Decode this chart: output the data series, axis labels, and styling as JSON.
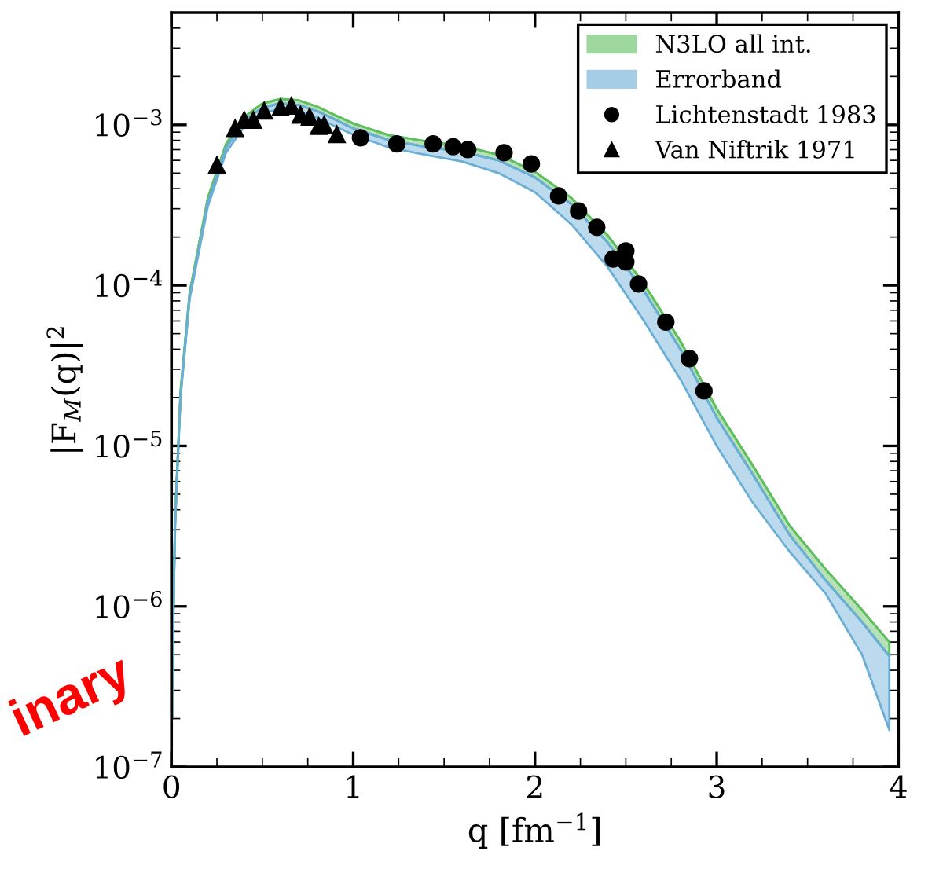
{
  "chart_data": {
    "type": "line",
    "xlabel": "q [fm$^{−1}$]",
    "ylabel": "|F$_{M}$(q)|$^{2}$",
    "xlim": [
      0,
      4
    ],
    "xticks": [
      0,
      1,
      2,
      3,
      4
    ],
    "ylim": [
      1e-07,
      0.005
    ],
    "log": "y",
    "yticks": [
      {
        "value": 1e-07,
        "label": "10$^{−7}$"
      },
      {
        "value": 1e-06,
        "label": "10$^{−6}$"
      },
      {
        "value": 1e-05,
        "label": "10$^{−5}$"
      },
      {
        "value": 0.0001,
        "label": "10$^{−4}$"
      },
      {
        "value": 0.001,
        "label": "10$^{−3}$"
      }
    ],
    "grid": false,
    "legend": "top right",
    "annotations": [
      {
        "text": "inary"
      }
    ],
    "series": [
      {
        "name": "N3LO all int.",
        "color": "#5fbf5f",
        "x": [
          0.005,
          0.01,
          0.02,
          0.05,
          0.1,
          0.2,
          0.3,
          0.4,
          0.5,
          0.6,
          0.7,
          0.8,
          0.9,
          1.0,
          1.2,
          1.4,
          1.6,
          1.8,
          2.0,
          2.2,
          2.4,
          2.6,
          2.8,
          3.0,
          3.2,
          3.4,
          3.6,
          3.8,
          3.95
        ],
        "values": [
          2.2e-07,
          9e-07,
          3.6e-06,
          2.2e-05,
          9e-05,
          0.00035,
          0.00076,
          0.00112,
          0.00136,
          0.00145,
          0.00142,
          0.0013,
          0.00115,
          0.00102,
          0.00086,
          0.00079,
          0.00074,
          0.00065,
          0.00051,
          0.00035,
          0.000205,
          0.000102,
          4.5e-05,
          1.7e-05,
          7.5e-06,
          3.2e-06,
          1.7e-06,
          9.5e-07,
          6e-07
        ],
        "upper": [
          2.2e-07,
          9e-07,
          3.6e-06,
          2.2e-05,
          9e-05,
          0.00035,
          0.00076,
          0.00112,
          0.00136,
          0.00145,
          0.00142,
          0.0013,
          0.00115,
          0.00102,
          0.00086,
          0.00079,
          0.00074,
          0.00065,
          0.00051,
          0.00035,
          0.000205,
          0.000102,
          4.5e-05,
          1.7e-05,
          7.5e-06,
          3.2e-06,
          1.7e-06,
          9.5e-07,
          6e-07
        ],
        "lower": [
          2.1e-07,
          8.6e-07,
          3.4e-06,
          2.1e-05,
          8.6e-05,
          0.00033,
          0.00072,
          0.00106,
          0.00128,
          0.00136,
          0.00133,
          0.00122,
          0.00108,
          0.00095,
          0.0008,
          0.00073,
          0.00068,
          0.0006,
          0.00047,
          0.00032,
          0.000185,
          9.2e-05,
          4e-05,
          1.5e-05,
          6.6e-06,
          2.8e-06,
          1.45e-06,
          8e-07,
          4.9e-07
        ]
      },
      {
        "name": "Errorband",
        "color": "#6aaed6",
        "x": [
          0.005,
          0.01,
          0.02,
          0.05,
          0.1,
          0.2,
          0.3,
          0.4,
          0.5,
          0.6,
          0.7,
          0.8,
          0.9,
          1.0,
          1.2,
          1.4,
          1.6,
          1.8,
          2.0,
          2.2,
          2.4,
          2.6,
          2.8,
          3.0,
          3.2,
          3.4,
          3.6,
          3.8,
          3.95
        ],
        "values": [
          2.1e-07,
          8.6e-07,
          3.4e-06,
          2.1e-05,
          8.6e-05,
          0.00033,
          0.00072,
          0.00106,
          0.00128,
          0.00136,
          0.00133,
          0.00122,
          0.00108,
          0.00095,
          0.0008,
          0.00073,
          0.00068,
          0.0006,
          0.00047,
          0.00032,
          0.000185,
          9.2e-05,
          4e-05,
          1.5e-05,
          6.6e-06,
          2.8e-06,
          1.45e-06,
          8e-07,
          4.9e-07
        ],
        "upper": [
          2.1e-07,
          8.6e-07,
          3.4e-06,
          2.1e-05,
          8.6e-05,
          0.00033,
          0.00072,
          0.00106,
          0.00128,
          0.00136,
          0.00133,
          0.00122,
          0.00108,
          0.00095,
          0.0008,
          0.00073,
          0.00068,
          0.0006,
          0.00047,
          0.00032,
          0.000185,
          9.2e-05,
          4e-05,
          1.5e-05,
          6.6e-06,
          2.8e-06,
          1.45e-06,
          8e-07,
          4.9e-07
        ],
        "lower": [
          2e-07,
          8.2e-07,
          3.2e-06,
          2e-05,
          8.2e-05,
          0.00031,
          0.00067,
          0.00098,
          0.00119,
          0.00125,
          0.00122,
          0.00111,
          0.00098,
          0.00087,
          0.00072,
          0.00065,
          0.00059,
          0.0005,
          0.00038,
          0.00024,
          0.00013,
          6e-05,
          2.6e-05,
          1e-05,
          4.4e-06,
          2.2e-06,
          1.2e-06,
          5e-07,
          1.7e-07
        ]
      },
      {
        "name": "Lichtenstadt 1983",
        "type": "scatter",
        "marker": "circle",
        "color": "#000000",
        "x": [
          1.04,
          1.24,
          1.44,
          1.55,
          1.63,
          1.83,
          1.98,
          2.13,
          2.24,
          2.34,
          2.43,
          2.5,
          2.5,
          2.57,
          2.72,
          2.85,
          2.93
        ],
        "values": [
          0.00083,
          0.00076,
          0.00076,
          0.00073,
          0.0007,
          0.00067,
          0.00057,
          0.00036,
          0.00029,
          0.00023,
          0.000146,
          0.000164,
          0.00014,
          0.000102,
          5.9e-05,
          3.5e-05,
          2.2e-05
        ]
      },
      {
        "name": "Van Niftrik 1971",
        "type": "scatter",
        "marker": "triangle",
        "color": "#000000",
        "x": [
          0.25,
          0.35,
          0.4,
          0.45,
          0.51,
          0.6,
          0.66,
          0.71,
          0.76,
          0.81,
          0.84,
          0.91
        ],
        "values": [
          0.00056,
          0.00095,
          0.00107,
          0.00107,
          0.00122,
          0.00128,
          0.00131,
          0.00115,
          0.00112,
          0.00098,
          0.001,
          0.00087
        ]
      }
    ]
  }
}
